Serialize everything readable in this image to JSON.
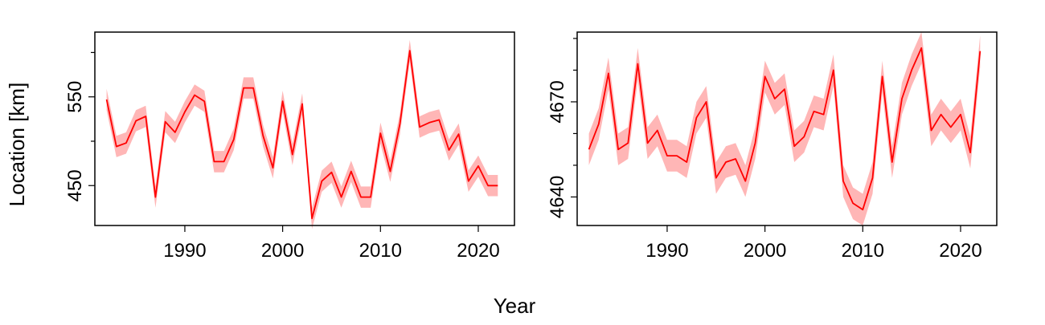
{
  "figure": {
    "xlabel": "Year",
    "ylabel": "Location [km]",
    "line_color": "#ff0000",
    "band_color": "#ffb6b6"
  },
  "chart_data": [
    {
      "type": "line",
      "panel": "left",
      "x": [
        1982,
        1983,
        1984,
        1985,
        1986,
        1987,
        1988,
        1989,
        1990,
        1991,
        1992,
        1993,
        1994,
        1995,
        1996,
        1997,
        1998,
        1999,
        2000,
        2001,
        2002,
        2003,
        2004,
        2005,
        2006,
        2007,
        2008,
        2009,
        2010,
        2011,
        2012,
        2013,
        2014,
        2015,
        2016,
        2017,
        2018,
        2019,
        2020,
        2021,
        2022
      ],
      "values": [
        547,
        494,
        498,
        523,
        528,
        437,
        522,
        510,
        533,
        552,
        545,
        477,
        477,
        502,
        560,
        560,
        506,
        470,
        545,
        485,
        542,
        413,
        455,
        465,
        437,
        466,
        437,
        437,
        509,
        466,
        520,
        602,
        516,
        521,
        524,
        490,
        508,
        455,
        472,
        450,
        450
      ],
      "band_half_width": 12,
      "xlim": [
        1980.8,
        2023.7
      ],
      "ylim": [
        405,
        623
      ],
      "yticks": [
        450,
        550
      ],
      "yminor": [
        500,
        600
      ],
      "xticks": [
        1990,
        2000,
        2010,
        2020
      ]
    },
    {
      "type": "line",
      "panel": "right",
      "x": [
        1982,
        1983,
        1984,
        1985,
        1986,
        1987,
        1988,
        1989,
        1990,
        1991,
        1992,
        1993,
        1994,
        1995,
        1996,
        1997,
        1998,
        1999,
        2000,
        2001,
        2002,
        2003,
        2004,
        2005,
        2006,
        2007,
        2008,
        2009,
        2010,
        2011,
        2012,
        2013,
        2014,
        2015,
        2016,
        2017,
        2018,
        2019,
        2020,
        2021,
        2022
      ],
      "values": [
        4655,
        4663,
        4679,
        4655,
        4657,
        4682,
        4657,
        4661,
        4653,
        4653,
        4651,
        4665,
        4670,
        4646,
        4651,
        4652,
        4645,
        4657,
        4678,
        4671,
        4674,
        4656,
        4659,
        4667,
        4666,
        4680,
        4645,
        4638,
        4636,
        4646,
        4678,
        4651,
        4671,
        4680,
        4687,
        4661,
        4666,
        4662,
        4666,
        4654,
        4686
      ],
      "band_half_width": 5,
      "xlim": [
        1980.8,
        2023.7
      ],
      "ylim": [
        4631,
        4692
      ],
      "yticks": [
        4640,
        4670
      ],
      "yminor": [
        4650,
        4660,
        4680,
        4690
      ],
      "xticks": [
        1990,
        2000,
        2010,
        2020
      ]
    }
  ]
}
